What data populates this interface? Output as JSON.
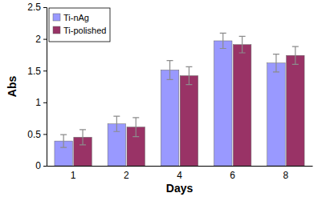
{
  "chart_data": {
    "type": "bar",
    "x_label": "Days",
    "y_label": "Abs",
    "categories": [
      "1",
      "2",
      "4",
      "6",
      "8"
    ],
    "series": [
      {
        "name": "Ti-nAg",
        "color": "#9999ff",
        "values": [
          0.39,
          0.66,
          1.51,
          1.97,
          1.62
        ],
        "errors": [
          0.1,
          0.12,
          0.15,
          0.12,
          0.14
        ]
      },
      {
        "name": "Ti-polished",
        "color": "#993366",
        "values": [
          0.45,
          0.61,
          1.42,
          1.91,
          1.74
        ],
        "errors": [
          0.12,
          0.15,
          0.14,
          0.13,
          0.14
        ]
      }
    ],
    "ylim": [
      0,
      2.5
    ],
    "yticks": [
      0,
      0.5,
      1,
      1.5,
      2,
      2.5
    ],
    "grid": false,
    "legend": "upper left"
  }
}
